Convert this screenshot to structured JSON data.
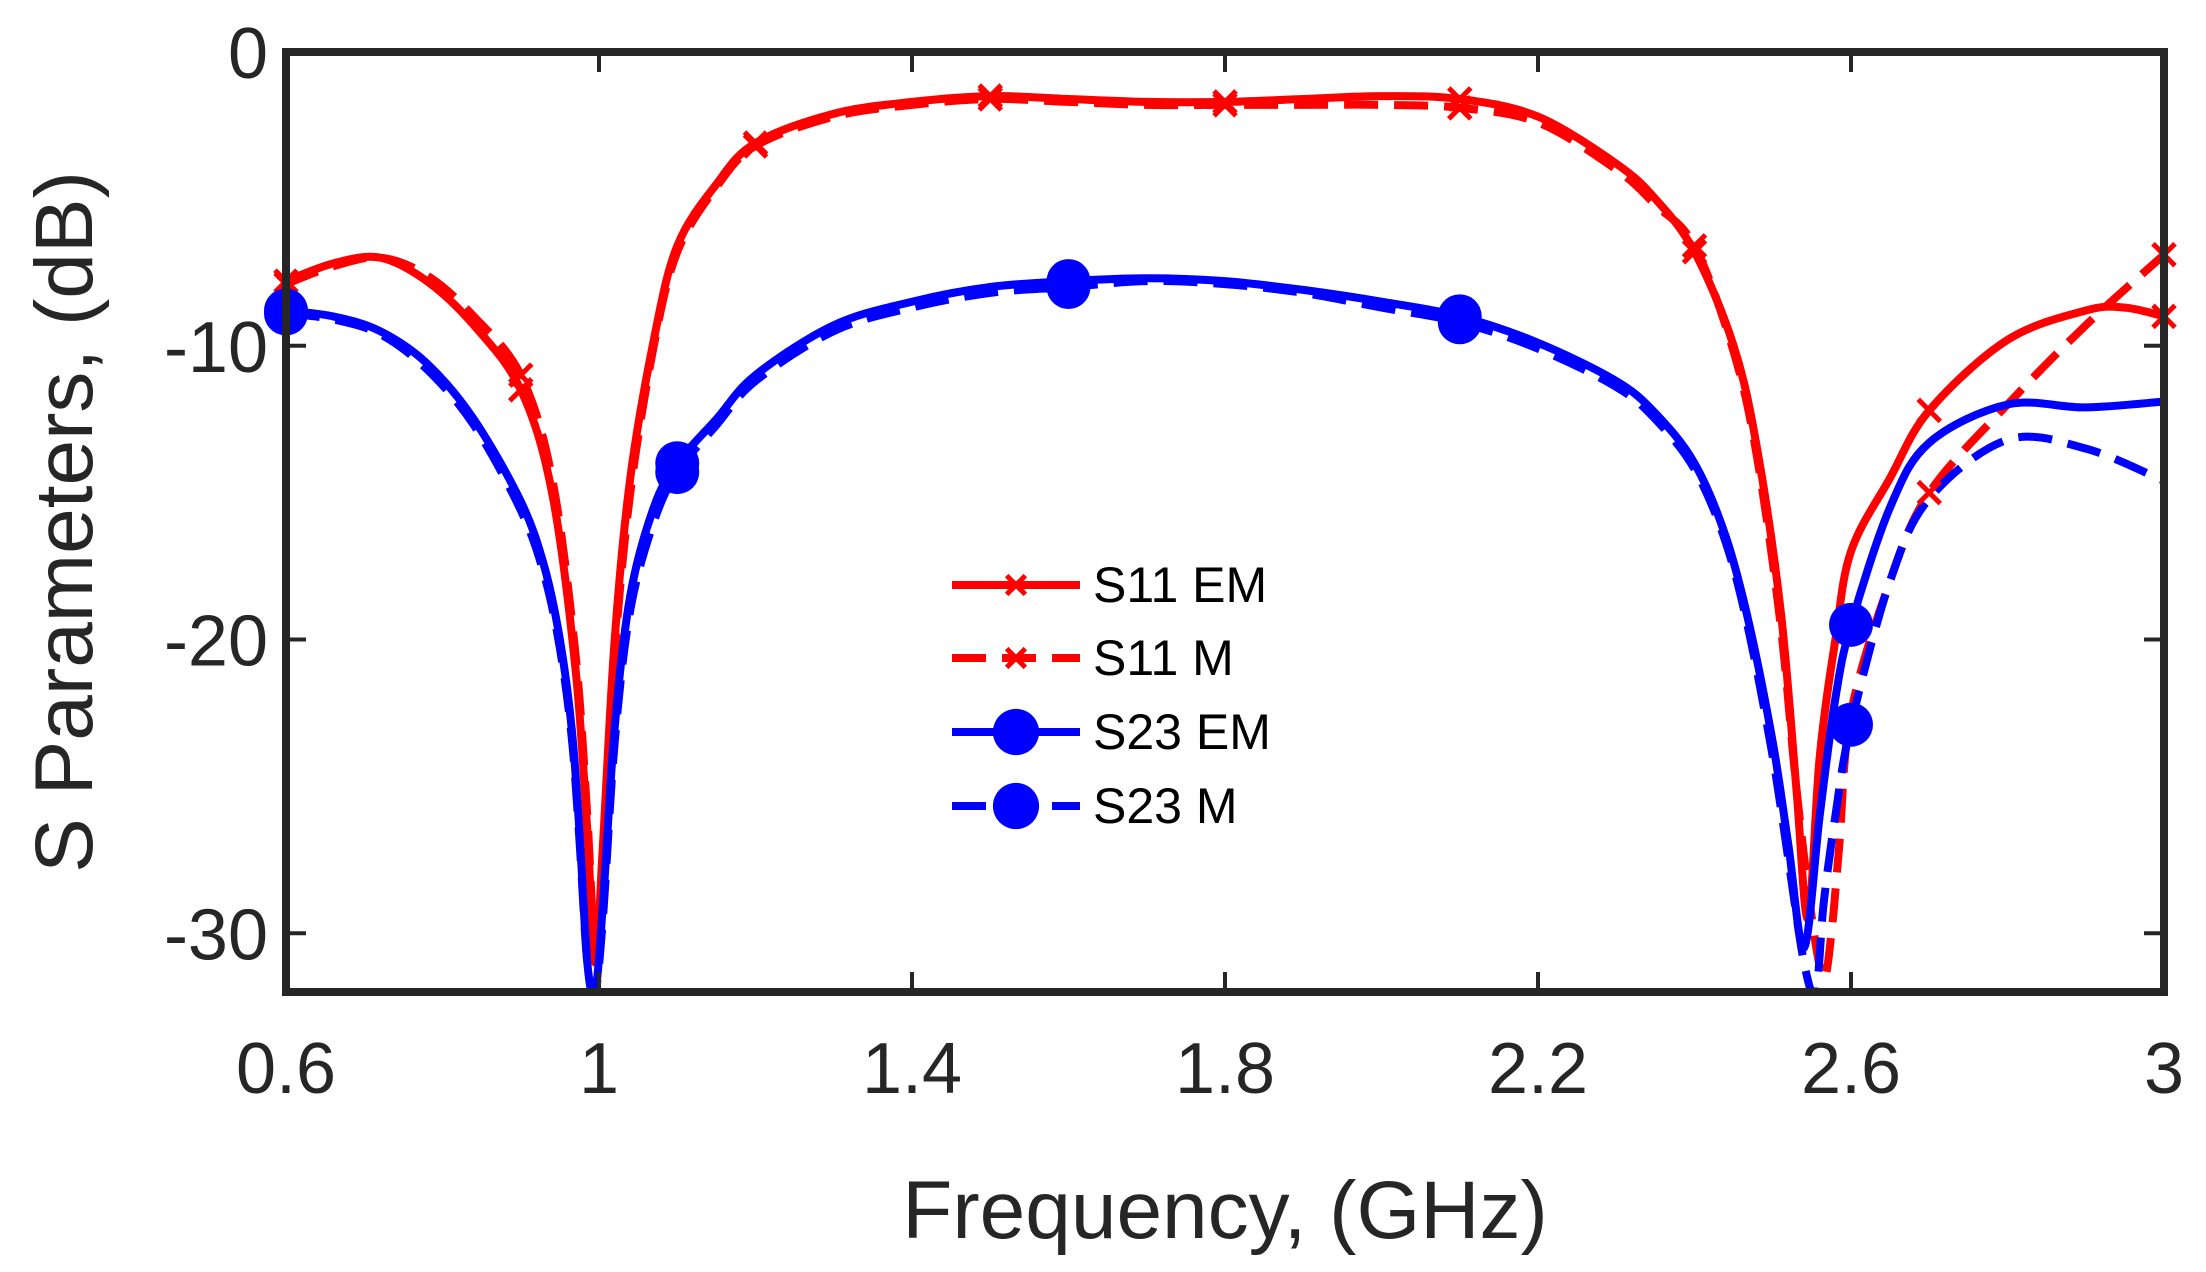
{
  "chart_data": {
    "type": "line",
    "title": "",
    "xlabel": "Frequency, (GHz)",
    "ylabel": "S Parameters, (dB)",
    "xlim": [
      0.6,
      3.0
    ],
    "ylim": [
      -32,
      0
    ],
    "xticks": [
      0.6,
      1.0,
      1.4,
      1.8,
      2.2,
      2.6,
      3.0
    ],
    "xtick_labels": [
      "0.6",
      "1",
      "1.4",
      "1.8",
      "2.2",
      "2.6",
      "3"
    ],
    "yticks": [
      0,
      -10,
      -20,
      -30
    ],
    "ytick_labels": [
      "0",
      "-10",
      "-20",
      "-30"
    ],
    "grid": false,
    "legend_position": "center",
    "series": [
      {
        "name": "S11 EM",
        "color": "#ff0000",
        "line": "solid",
        "marker": "x",
        "x": [
          0.6,
          0.66,
          0.72,
          0.78,
          0.84,
          0.9,
          0.94,
          0.97,
          0.985,
          0.995,
          1.005,
          1.02,
          1.04,
          1.07,
          1.1,
          1.15,
          1.2,
          1.3,
          1.4,
          1.5,
          1.6,
          1.7,
          1.8,
          1.9,
          2.0,
          2.1,
          2.2,
          2.3,
          2.35,
          2.4,
          2.45,
          2.48,
          2.51,
          2.53,
          2.545,
          2.56,
          2.58,
          2.6,
          2.65,
          2.7,
          2.8,
          2.9,
          2.95,
          3.0
        ],
        "y": [
          -7.8,
          -7.2,
          -7.0,
          -7.8,
          -9.3,
          -11.5,
          -15,
          -21,
          -26.5,
          -31,
          -27,
          -20,
          -14.5,
          -9.8,
          -6.6,
          -4.5,
          -3.1,
          -2.1,
          -1.7,
          -1.5,
          -1.6,
          -1.7,
          -1.7,
          -1.6,
          -1.5,
          -1.6,
          -2.2,
          -3.8,
          -5.0,
          -6.8,
          -10,
          -13.5,
          -19,
          -25,
          -29.5,
          -24,
          -20,
          -17,
          -14.5,
          -12.2,
          -9.8,
          -8.8,
          -8.7,
          -9.0
        ],
        "markers_at": [
          0.6,
          0.9,
          1.2,
          1.5,
          1.8,
          2.1,
          2.4,
          2.7,
          3.0
        ]
      },
      {
        "name": "S11 M",
        "color": "#ff0000",
        "line": "dashed",
        "marker": "x",
        "x": [
          0.6,
          0.66,
          0.72,
          0.78,
          0.84,
          0.9,
          0.94,
          0.97,
          0.985,
          0.995,
          1.005,
          1.02,
          1.04,
          1.07,
          1.1,
          1.15,
          1.2,
          1.3,
          1.4,
          1.5,
          1.6,
          1.7,
          1.8,
          1.9,
          2.0,
          2.1,
          2.2,
          2.3,
          2.35,
          2.4,
          2.45,
          2.48,
          2.51,
          2.53,
          2.55,
          2.565,
          2.575,
          2.585,
          2.6,
          2.65,
          2.7,
          2.8,
          2.9,
          3.0
        ],
        "y": [
          -7.9,
          -7.3,
          -7.0,
          -7.6,
          -9.0,
          -11.0,
          -14.5,
          -20.5,
          -26,
          -30.5,
          -27.5,
          -20.5,
          -15,
          -10,
          -6.8,
          -4.6,
          -3.2,
          -2.2,
          -1.8,
          -1.6,
          -1.7,
          -1.8,
          -1.8,
          -1.8,
          -1.8,
          -1.9,
          -2.4,
          -4.0,
          -5.2,
          -6.6,
          -10.2,
          -13.8,
          -19.5,
          -25,
          -29.5,
          -31.5,
          -30,
          -27,
          -22.5,
          -18,
          -15,
          -12,
          -9.3,
          -6.9
        ],
        "markers_at": [
          0.6,
          0.9,
          1.2,
          1.5,
          1.8,
          2.1,
          2.4,
          2.7,
          3.0
        ]
      },
      {
        "name": "S23 EM",
        "color": "#0000ff",
        "line": "solid",
        "marker": "o",
        "x": [
          0.6,
          0.66,
          0.72,
          0.78,
          0.84,
          0.9,
          0.93,
          0.95,
          0.965,
          0.975,
          0.985,
          0.995,
          1.005,
          1.02,
          1.04,
          1.07,
          1.1,
          1.15,
          1.2,
          1.3,
          1.4,
          1.5,
          1.6,
          1.7,
          1.8,
          1.9,
          2.0,
          2.1,
          2.2,
          2.3,
          2.35,
          2.4,
          2.44,
          2.47,
          2.5,
          2.52,
          2.54,
          2.56,
          2.58,
          2.6,
          2.65,
          2.7,
          2.8,
          2.9,
          3.0
        ],
        "y": [
          -8.8,
          -9.0,
          -9.5,
          -10.6,
          -12.5,
          -15.3,
          -17.5,
          -20,
          -23,
          -26.5,
          -31,
          -32,
          -29,
          -23,
          -18.5,
          -15.5,
          -14,
          -12.5,
          -11,
          -9.3,
          -8.5,
          -8.0,
          -7.8,
          -7.7,
          -7.8,
          -8.1,
          -8.5,
          -9.0,
          -9.9,
          -11.2,
          -12.3,
          -14,
          -16.5,
          -19.5,
          -23.5,
          -27,
          -30.5,
          -26,
          -22,
          -19.5,
          -15.5,
          -13.3,
          -12.0,
          -12.1,
          -11.9
        ],
        "markers_at": [
          0.6,
          1.1,
          1.6,
          2.1,
          2.6
        ]
      },
      {
        "name": "S23 M",
        "color": "#0000ff",
        "line": "dashed",
        "marker": "o",
        "x": [
          0.6,
          0.66,
          0.72,
          0.78,
          0.84,
          0.9,
          0.93,
          0.95,
          0.965,
          0.975,
          0.985,
          0.995,
          1.005,
          1.02,
          1.04,
          1.07,
          1.1,
          1.15,
          1.2,
          1.3,
          1.4,
          1.5,
          1.6,
          1.7,
          1.8,
          1.9,
          2.0,
          2.1,
          2.2,
          2.3,
          2.35,
          2.4,
          2.44,
          2.47,
          2.5,
          2.52,
          2.54,
          2.555,
          2.565,
          2.58,
          2.6,
          2.65,
          2.7,
          2.8,
          2.9,
          3.0
        ],
        "y": [
          -8.9,
          -9.1,
          -9.6,
          -10.8,
          -12.7,
          -15.6,
          -17.8,
          -20.3,
          -23.3,
          -26.8,
          -31,
          -32,
          -29.5,
          -23.5,
          -19,
          -16,
          -14.3,
          -12.7,
          -11.2,
          -9.5,
          -8.7,
          -8.2,
          -8.0,
          -7.8,
          -7.9,
          -8.2,
          -8.7,
          -9.2,
          -10.1,
          -11.4,
          -12.5,
          -14.2,
          -16.7,
          -19.8,
          -24,
          -27.5,
          -31,
          -32,
          -29,
          -26,
          -22.9,
          -18,
          -15.2,
          -13.2,
          -13.5,
          -14.6
        ],
        "markers_at": [
          0.6,
          1.1,
          1.6,
          2.1,
          2.6
        ]
      }
    ]
  }
}
